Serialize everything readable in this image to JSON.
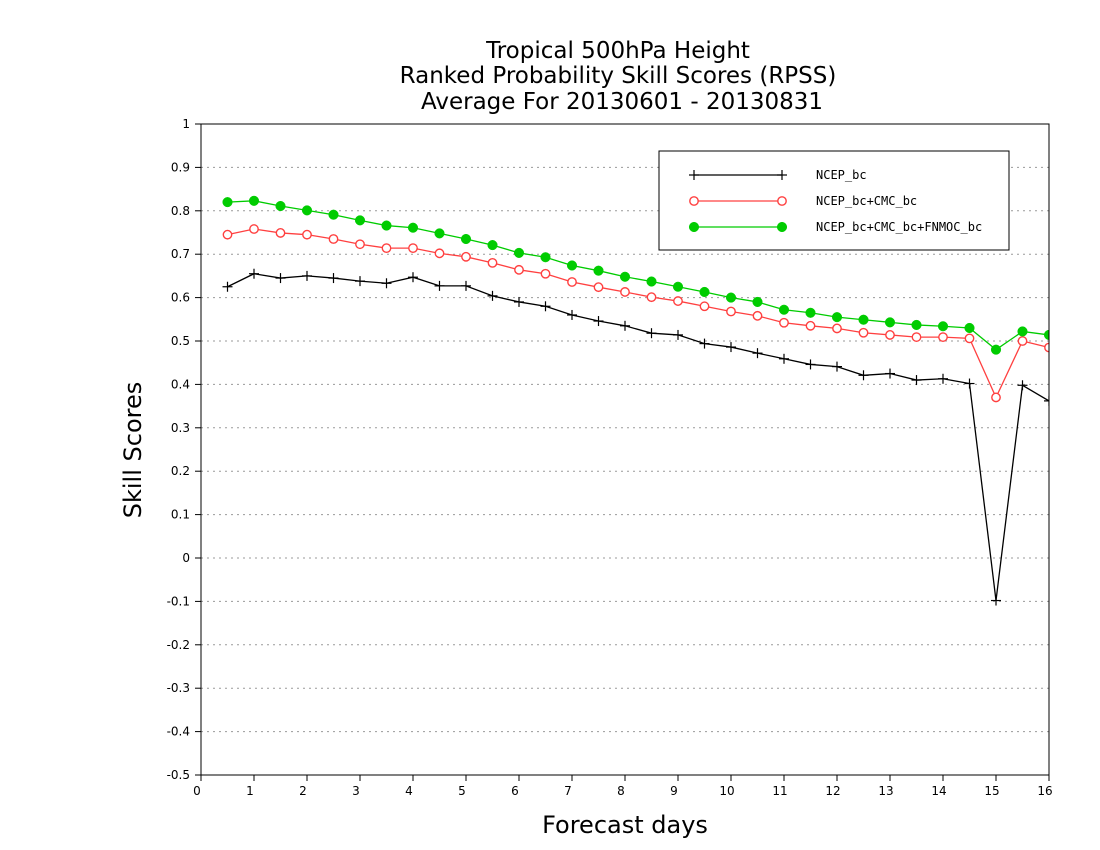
{
  "chart_data": {
    "type": "line",
    "title": [
      "Tropical 500hPa Height",
      "Ranked Probability Skill Scores (RPSS)",
      "Average For 20130601 - 20130831"
    ],
    "xlabel": "Forecast days",
    "ylabel": "Skill Scores",
    "xlim": [
      0,
      16
    ],
    "ylim": [
      -0.5,
      1
    ],
    "xticks": [
      0,
      1,
      2,
      3,
      4,
      5,
      6,
      7,
      8,
      9,
      10,
      11,
      12,
      13,
      14,
      15,
      16
    ],
    "xtick_labels": [
      "0",
      "1",
      "2",
      "3",
      "4",
      "5",
      "6",
      "7",
      "8",
      "9",
      "10",
      "11",
      "12",
      "13",
      "14",
      "15",
      "16"
    ],
    "yticks": [
      -0.5,
      -0.4,
      -0.3,
      -0.2,
      -0.1,
      0,
      0.1,
      0.2,
      0.3,
      0.4,
      0.5,
      0.6,
      0.7,
      0.8,
      0.9,
      1
    ],
    "ytick_labels": [
      "-0.5",
      "-0.4",
      "-0.3",
      "-0.2",
      "-0.1",
      "0",
      "0.1",
      "0.2",
      "0.3",
      "0.4",
      "0.5",
      "0.6",
      "0.7",
      "0.8",
      "0.9",
      "1"
    ],
    "grid": true,
    "legend_position": "top-right",
    "x": [
      0.5,
      1,
      1.5,
      2,
      2.5,
      3,
      3.5,
      4,
      4.5,
      5,
      5.5,
      6,
      6.5,
      7,
      7.5,
      8,
      8.5,
      9,
      9.5,
      10,
      10.5,
      11,
      11.5,
      12,
      12.5,
      13,
      13.5,
      14,
      14.5,
      15,
      15.5,
      16
    ],
    "series": [
      {
        "name": "NCEP_bc",
        "color": "#000000",
        "marker": "plus",
        "values": [
          0.625,
          0.655,
          0.645,
          0.65,
          0.645,
          0.638,
          0.633,
          0.647,
          0.627,
          0.627,
          0.604,
          0.59,
          0.58,
          0.56,
          0.546,
          0.535,
          0.518,
          0.514,
          0.494,
          0.486,
          0.472,
          0.459,
          0.446,
          0.441,
          0.421,
          0.425,
          0.41,
          0.413,
          0.402,
          -0.098,
          0.398,
          0.362
        ]
      },
      {
        "name": "NCEP_bc+CMC_bc",
        "color": "#ff4040",
        "marker": "open-circle",
        "values": [
          0.745,
          0.758,
          0.749,
          0.745,
          0.735,
          0.723,
          0.714,
          0.714,
          0.702,
          0.694,
          0.68,
          0.664,
          0.655,
          0.636,
          0.624,
          0.613,
          0.601,
          0.592,
          0.58,
          0.568,
          0.558,
          0.542,
          0.535,
          0.529,
          0.519,
          0.514,
          0.509,
          0.509,
          0.506,
          0.37,
          0.5,
          0.485
        ]
      },
      {
        "name": "NCEP_bc+CMC_bc+FNMOC_bc",
        "color": "#00cc00",
        "marker": "filled-circle",
        "values": [
          0.82,
          0.823,
          0.811,
          0.801,
          0.791,
          0.778,
          0.766,
          0.761,
          0.748,
          0.735,
          0.721,
          0.703,
          0.693,
          0.674,
          0.662,
          0.648,
          0.637,
          0.625,
          0.613,
          0.6,
          0.59,
          0.572,
          0.565,
          0.555,
          0.549,
          0.543,
          0.537,
          0.534,
          0.53,
          0.48,
          0.522,
          0.514
        ]
      }
    ]
  }
}
